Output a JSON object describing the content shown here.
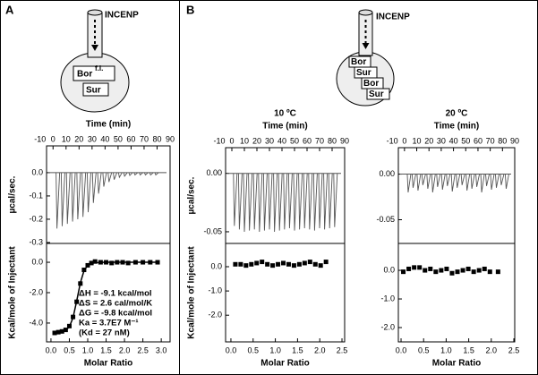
{
  "panel_labels": [
    "A",
    "B"
  ],
  "diagrams": {
    "a": {
      "syringe": "INCENP",
      "cell": [
        {
          "text": "Bor",
          "sup": "f.l."
        },
        {
          "text": "Sur"
        }
      ]
    },
    "b": {
      "syringe": "INCENP",
      "cell": [
        "Bor",
        "Sur",
        "Bor",
        "Sur"
      ]
    }
  },
  "chart_data": [
    {
      "type": "spike",
      "x_label": "Time (min)",
      "y_label": "µcal/sec.",
      "color": "#555555",
      "xlim": [
        -5,
        90
      ],
      "xticks": [
        -10,
        0,
        10,
        20,
        30,
        40,
        50,
        60,
        70,
        80,
        90
      ],
      "ylim": [
        -0.304,
        0.115
      ],
      "yticks": [
        {
          "value": 0,
          "label": "0.0"
        },
        -0.1,
        -0.2,
        -0.3
      ],
      "x": [
        3,
        7,
        11,
        15,
        19,
        23,
        27,
        31,
        35,
        39,
        43,
        47,
        51,
        55,
        59,
        63,
        67,
        71,
        75,
        79
      ],
      "values": [
        -0.24,
        -0.23,
        -0.22,
        -0.21,
        -0.2,
        -0.19,
        -0.17,
        -0.13,
        -0.09,
        -0.06,
        -0.04,
        -0.03,
        -0.02,
        -0.015,
        -0.012,
        -0.01,
        -0.01,
        -0.01,
        -0.01,
        -0.01
      ]
    },
    {
      "type": "scatter",
      "x_label": "Molar Ratio",
      "y_label": "Kcal/mole of Injectant",
      "color": "#000000",
      "xlim": [
        -0.12,
        3.24
      ],
      "xticks": [
        {
          "value": 0,
          "label": "0.0"
        },
        0.5,
        {
          "value": 1,
          "label": "1.0"
        },
        1.5,
        {
          "value": 2,
          "label": "2.0"
        },
        2.5,
        {
          "value": 3,
          "label": "3.0"
        }
      ],
      "ylim": [
        -5.24,
        1.24
      ],
      "yticks": [
        {
          "value": 0,
          "label": "0.0"
        },
        {
          "value": -2,
          "label": "-2.0"
        },
        {
          "value": -4,
          "label": "-4.0"
        }
      ],
      "x": [
        0.1,
        0.2,
        0.3,
        0.4,
        0.5,
        0.6,
        0.7,
        0.8,
        0.9,
        1.0,
        1.1,
        1.2,
        1.35,
        1.5,
        1.65,
        1.8,
        1.95,
        2.1,
        2.3,
        2.5,
        2.7,
        2.9
      ],
      "values": [
        -4.65,
        -4.6,
        -4.55,
        -4.45,
        -4.2,
        -3.6,
        -2.6,
        -1.4,
        -0.5,
        -0.2,
        -0.05,
        0.05,
        0,
        0,
        -0.05,
        0,
        0,
        -0.05,
        0,
        0,
        0,
        0
      ],
      "fit": [
        -4.6,
        -4.58,
        -4.55,
        -4.48,
        -4.25,
        -3.65,
        -2.55,
        -1.35,
        -0.55,
        -0.2,
        -0.08,
        -0.03,
        -0.01,
        0,
        0,
        0,
        0,
        0,
        0,
        0,
        0,
        0
      ],
      "annotations": [
        "ΔH = -9.1 kcal/mol",
        "ΔS =  2.6 cal/mol/K",
        "ΔG = -9.8 kcal/mol",
        "Ka =  3.7E7 M⁻¹",
        "(Kd = 27 nM)"
      ]
    },
    {
      "type": "spike",
      "title": "10 ºC",
      "x_label": "Time (min)",
      "y_label": "µcal/sec.",
      "color": "#555555",
      "xlim": [
        -5,
        90
      ],
      "xticks": [
        -10,
        0,
        10,
        20,
        30,
        40,
        50,
        60,
        70,
        80,
        90
      ],
      "ylim": [
        -0.06,
        0.022
      ],
      "yticks": [
        {
          "value": 0,
          "label": "0.00"
        },
        -0.05
      ],
      "x": [
        2,
        6,
        10,
        14,
        18,
        22,
        26,
        30,
        34,
        38,
        42,
        46,
        50,
        54,
        58,
        62,
        66,
        70,
        74,
        78,
        82
      ],
      "values": [
        -0.045,
        -0.048,
        -0.05,
        -0.049,
        -0.048,
        -0.05,
        -0.049,
        -0.048,
        -0.05,
        -0.049,
        -0.048,
        -0.047,
        -0.049,
        -0.048,
        -0.047,
        -0.048,
        -0.049,
        -0.047,
        -0.048,
        -0.047,
        -0.046
      ]
    },
    {
      "type": "scatter",
      "x_label": "Molar Ratio",
      "y_label": "Kcal/mole of Injectant",
      "color": "#000000",
      "xlim": [
        -0.12,
        2.56
      ],
      "xticks": [
        {
          "value": 0,
          "label": "0.0"
        },
        0.5,
        {
          "value": 1,
          "label": "1.0"
        },
        1.5,
        {
          "value": 2,
          "label": "2.0"
        },
        2.5
      ],
      "ylim": [
        -3.1,
        0.96
      ],
      "yticks": [
        {
          "value": 0,
          "label": "0.0"
        },
        {
          "value": -1,
          "label": "-1.0"
        },
        {
          "value": -2,
          "label": "-2.0"
        }
      ],
      "x": [
        0.1,
        0.22,
        0.34,
        0.46,
        0.58,
        0.7,
        0.82,
        0.94,
        1.06,
        1.18,
        1.3,
        1.42,
        1.54,
        1.66,
        1.78,
        1.9,
        2.02,
        2.14
      ],
      "values": [
        0.1,
        0.1,
        0.05,
        0.1,
        0.15,
        0.2,
        0.1,
        0.05,
        0.1,
        0.15,
        0.1,
        0.05,
        0.1,
        0.15,
        0.2,
        0.1,
        0.05,
        0.2
      ]
    },
    {
      "type": "spike",
      "title": "20 ºC",
      "x_label": "Time (min)",
      "color": "#555555",
      "xlim": [
        -5,
        90
      ],
      "xticks": [
        -10,
        0,
        10,
        20,
        30,
        40,
        50,
        60,
        70,
        80,
        90
      ],
      "ylim": [
        -0.076,
        0.029
      ],
      "yticks": [
        {
          "value": 0,
          "label": "0.00"
        },
        -0.05
      ],
      "x": [
        3,
        7,
        11,
        15,
        19,
        23,
        27,
        31,
        35,
        39,
        43,
        47,
        51,
        55,
        59,
        63,
        67,
        71,
        75,
        79,
        83
      ],
      "values": [
        -0.02,
        -0.015,
        -0.018,
        -0.012,
        -0.016,
        -0.02,
        -0.014,
        -0.017,
        -0.013,
        -0.019,
        -0.015,
        -0.012,
        -0.018,
        -0.016,
        -0.014,
        -0.02,
        -0.013,
        -0.017,
        -0.015,
        -0.012,
        -0.016
      ]
    },
    {
      "type": "scatter",
      "x_label": "Molar Ratio",
      "color": "#000000",
      "xlim": [
        -0.06,
        2.52
      ],
      "xticks": [
        {
          "value": 0,
          "label": "0.0"
        },
        0.5,
        {
          "value": 1,
          "label": "1.0"
        },
        1.5,
        {
          "value": 2,
          "label": "2.0"
        },
        2.5
      ],
      "ylim": [
        -2.5,
        0.94
      ],
      "yticks": [
        {
          "value": 0,
          "label": "0.0"
        },
        {
          "value": -1,
          "label": "-1.0"
        },
        {
          "value": -2,
          "label": "-2.0"
        }
      ],
      "x": [
        0.05,
        0.17,
        0.29,
        0.41,
        0.53,
        0.65,
        0.77,
        0.89,
        1.01,
        1.13,
        1.25,
        1.37,
        1.49,
        1.61,
        1.73,
        1.85,
        1.97,
        2.15
      ],
      "values": [
        -0.05,
        0.05,
        0.1,
        0.1,
        0,
        0.05,
        -0.05,
        0,
        0.05,
        -0.1,
        -0.05,
        0,
        0.05,
        -0.05,
        0,
        0.05,
        -0.05,
        -0.05
      ]
    }
  ]
}
